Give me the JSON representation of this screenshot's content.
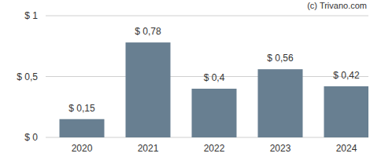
{
  "chart_data": {
    "type": "bar",
    "annotations": [
      "(c) Trivano.com"
    ],
    "categories": [
      "2020",
      "2021",
      "2022",
      "2023",
      "2024"
    ],
    "values": [
      0.15,
      0.78,
      0.4,
      0.56,
      0.42
    ],
    "value_labels": [
      "$ 0,15",
      "$ 0,78",
      "$ 0,4",
      "$ 0,56",
      "$ 0,42"
    ],
    "data_labels": true,
    "color": "#687f91",
    "ylim": [
      0,
      1
    ],
    "yticks": [
      {
        "value": 0,
        "label": "$ 0"
      },
      {
        "value": 0.5,
        "label": "$ 0,5"
      },
      {
        "value": 1,
        "label": "$ 1"
      }
    ],
    "grid": true
  }
}
